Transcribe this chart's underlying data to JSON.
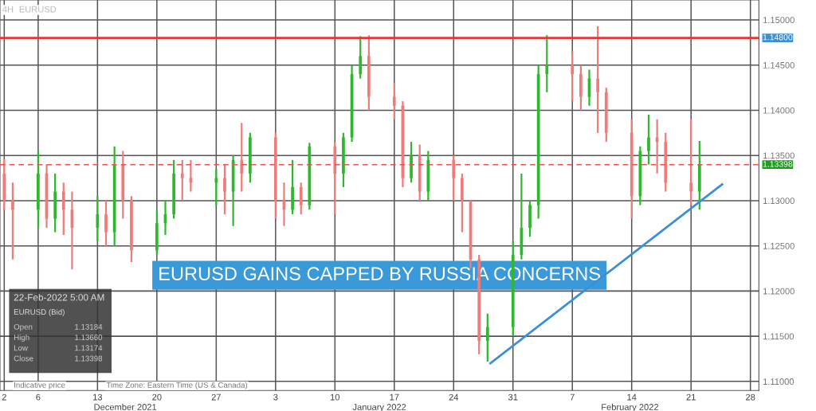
{
  "chart_data": {
    "type": "candlestick",
    "title": "EURUSD GAINS CAPPED BY RUSSIA CONCERNS",
    "x": [
      "2021-12-02",
      "2021-12-03",
      "2021-12-06",
      "2021-12-07",
      "2021-12-08",
      "2021-12-09",
      "2021-12-10",
      "2021-12-13",
      "2021-12-14",
      "2021-12-15",
      "2021-12-16",
      "2021-12-17",
      "2021-12-20",
      "2021-12-21",
      "2021-12-22",
      "2021-12-23",
      "2021-12-24",
      "2021-12-27",
      "2021-12-28",
      "2021-12-29",
      "2021-12-30",
      "2021-12-31",
      "2022-01-03",
      "2022-01-04",
      "2022-01-05",
      "2022-01-06",
      "2022-01-07",
      "2022-01-10",
      "2022-01-11",
      "2022-01-12",
      "2022-01-13",
      "2022-01-14",
      "2022-01-17",
      "2022-01-18",
      "2022-01-19",
      "2022-01-20",
      "2022-01-21",
      "2022-01-24",
      "2022-01-25",
      "2022-01-26",
      "2022-01-27",
      "2022-01-28",
      "2022-01-31",
      "2022-02-01",
      "2022-02-02",
      "2022-02-03",
      "2022-02-04",
      "2022-02-07",
      "2022-02-08",
      "2022-02-09",
      "2022-02-10",
      "2022-02-11",
      "2022-02-14",
      "2022-02-15",
      "2022-02-16",
      "2022-02-17",
      "2022-02-18",
      "2022-02-21",
      "2022-02-22"
    ],
    "ohlc": [
      [
        1.133,
        1.1346,
        1.129,
        1.13
      ],
      [
        1.13,
        1.132,
        1.1235,
        1.129
      ],
      [
        1.129,
        1.1355,
        1.127,
        1.133
      ],
      [
        1.133,
        1.134,
        1.127,
        1.128
      ],
      [
        1.128,
        1.133,
        1.1265,
        1.131
      ],
      [
        1.131,
        1.132,
        1.1262,
        1.129
      ],
      [
        1.129,
        1.131,
        1.1224,
        1.127
      ],
      [
        1.127,
        1.1305,
        1.1255,
        1.1285
      ],
      [
        1.1285,
        1.13,
        1.125,
        1.1265
      ],
      [
        1.1265,
        1.136,
        1.125,
        1.134
      ],
      [
        1.134,
        1.1355,
        1.128,
        1.13
      ],
      [
        1.13,
        1.1305,
        1.1232,
        1.1245
      ],
      [
        1.1245,
        1.129,
        1.124,
        1.1275
      ],
      [
        1.1275,
        1.13,
        1.1262,
        1.1285
      ],
      [
        1.1285,
        1.1345,
        1.128,
        1.133
      ],
      [
        1.133,
        1.1345,
        1.13,
        1.1325
      ],
      [
        1.1325,
        1.1345,
        1.131,
        1.132
      ],
      [
        1.132,
        1.1335,
        1.1295,
        1.1325
      ],
      [
        1.1325,
        1.134,
        1.1285,
        1.131
      ],
      [
        1.131,
        1.135,
        1.1272,
        1.1345
      ],
      [
        1.1345,
        1.1386,
        1.131,
        1.133
      ],
      [
        1.133,
        1.1375,
        1.132,
        1.137
      ],
      [
        1.137,
        1.1375,
        1.128,
        1.13
      ],
      [
        1.13,
        1.132,
        1.1272,
        1.129
      ],
      [
        1.129,
        1.1345,
        1.1285,
        1.1315
      ],
      [
        1.1315,
        1.132,
        1.1285,
        1.1295
      ],
      [
        1.1295,
        1.1364,
        1.129,
        1.136
      ],
      [
        1.136,
        1.1365,
        1.1285,
        1.133
      ],
      [
        1.133,
        1.1375,
        1.1315,
        1.137
      ],
      [
        1.137,
        1.145,
        1.1365,
        1.144
      ],
      [
        1.144,
        1.1482,
        1.1435,
        1.146
      ],
      [
        1.146,
        1.1483,
        1.14,
        1.1415
      ],
      [
        1.1415,
        1.143,
        1.139,
        1.1405
      ],
      [
        1.1405,
        1.141,
        1.1315,
        1.1325
      ],
      [
        1.1325,
        1.1365,
        1.132,
        1.135
      ],
      [
        1.135,
        1.1362,
        1.13,
        1.131
      ],
      [
        1.131,
        1.1355,
        1.13,
        1.1345
      ],
      [
        1.1345,
        1.135,
        1.13,
        1.1325
      ],
      [
        1.1325,
        1.133,
        1.1265,
        1.13
      ],
      [
        1.13,
        1.13,
        1.1225,
        1.1235
      ],
      [
        1.1235,
        1.124,
        1.113,
        1.1145
      ],
      [
        1.1145,
        1.1175,
        1.1122,
        1.116
      ],
      [
        1.116,
        1.1255,
        1.115,
        1.124
      ],
      [
        1.124,
        1.133,
        1.1235,
        1.127
      ],
      [
        1.127,
        1.13,
        1.126,
        1.1295
      ],
      [
        1.1295,
        1.145,
        1.128,
        1.144
      ],
      [
        1.144,
        1.1483,
        1.142,
        1.145
      ],
      [
        1.145,
        1.1465,
        1.141,
        1.144
      ],
      [
        1.144,
        1.145,
        1.14,
        1.1415
      ],
      [
        1.1415,
        1.1445,
        1.1405,
        1.1435
      ],
      [
        1.1435,
        1.1493,
        1.1375,
        1.142
      ],
      [
        1.142,
        1.1425,
        1.1365,
        1.1375
      ],
      [
        1.1375,
        1.139,
        1.128,
        1.1305
      ],
      [
        1.1305,
        1.136,
        1.1295,
        1.1355
      ],
      [
        1.1355,
        1.1395,
        1.134,
        1.137
      ],
      [
        1.137,
        1.139,
        1.133,
        1.1365
      ],
      [
        1.1365,
        1.1375,
        1.131,
        1.132
      ],
      [
        1.132,
        1.139,
        1.1295,
        1.131
      ],
      [
        1.131,
        1.1366,
        1.129,
        1.134
      ]
    ],
    "series": [
      {
        "type": "line",
        "color": "#3a8fd9",
        "x": [
          "2022-01-28T08:00",
          "2022-02-24T16:00"
        ],
        "values": [
          1.112,
          1.1318
        ]
      }
    ],
    "ref_lines": [
      {
        "axis": "y",
        "value": 1.148,
        "label": "1.14800",
        "color": "#e53935",
        "line_style": "solid"
      },
      {
        "axis": "y",
        "value": 1.13398,
        "label": "1.13398",
        "color": "#f05050",
        "line_style": "dashed"
      }
    ],
    "xlim": [
      "2021-12-01T12:00",
      "2022-03-01"
    ],
    "xticks": [
      {
        "value": "2021-12-02",
        "label": "2"
      },
      {
        "value": "2021-12-06",
        "label": "6"
      },
      {
        "value": "2021-12-13",
        "label": "13"
      },
      {
        "value": "2021-12-20",
        "label": "20"
      },
      {
        "value": "2021-12-27",
        "label": "27"
      },
      {
        "value": "2022-01-03",
        "label": "3"
      },
      {
        "value": "2022-01-10",
        "label": "10"
      },
      {
        "value": "2022-01-17",
        "label": "17"
      },
      {
        "value": "2022-01-24",
        "label": "24"
      },
      {
        "value": "2022-01-31",
        "label": "31"
      },
      {
        "value": "2022-02-07",
        "label": "7"
      },
      {
        "value": "2022-02-14",
        "label": "14"
      },
      {
        "value": "2022-02-21",
        "label": "21"
      },
      {
        "value": "2022-02-28",
        "label": "28"
      }
    ],
    "ylim": [
      1.109,
      1.1522
    ],
    "yticks": [
      {
        "value": 1.11,
        "label": "1.11000"
      },
      {
        "value": 1.115,
        "label": "1.11500"
      },
      {
        "value": 1.12,
        "label": "1.12000"
      },
      {
        "value": 1.125,
        "label": "1.12500"
      },
      {
        "value": 1.13,
        "label": "1.13000"
      },
      {
        "value": 1.135,
        "label": "1.13500"
      },
      {
        "value": 1.14,
        "label": "1.14000"
      },
      {
        "value": 1.145,
        "label": "1.14500"
      },
      {
        "value": 1.15,
        "label": "1.15000"
      }
    ],
    "grid": true,
    "annotations": [
      "4H",
      "EURUSD",
      "22-Feb-2022 5:00 AM",
      "EURUSD (Bid)",
      "Open",
      "1.13184",
      "High",
      "1.13660",
      "Low",
      "1.13174",
      "Close",
      "1.13398",
      "Indicative price",
      "Time Zone: Eastern Time (US & Canada)",
      "December 2021",
      "January 2022",
      "February 2022"
    ]
  }
}
